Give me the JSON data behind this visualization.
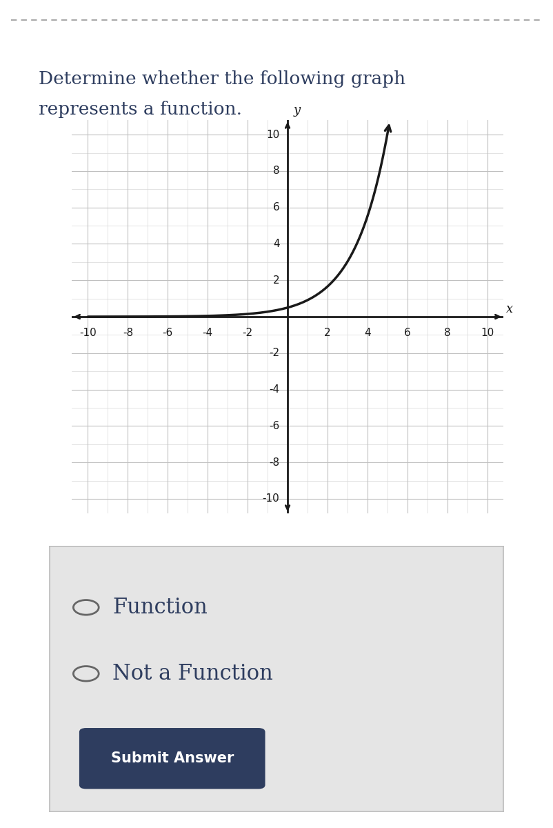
{
  "title_line1": "Determine whether the following graph",
  "title_line2": "represents a function.",
  "title_color": "#2e3d5f",
  "title_fontsize": 19,
  "bg_color": "#ffffff",
  "grid_minor_color": "#d8d8d8",
  "grid_major_color": "#c0c0c0",
  "axis_color": "#1a1a1a",
  "curve_color": "#1a1a1a",
  "xlim": [
    -10,
    10
  ],
  "ylim": [
    -10,
    10
  ],
  "xticks": [
    -10,
    -8,
    -6,
    -4,
    -2,
    2,
    4,
    6,
    8,
    10
  ],
  "yticks": [
    -10,
    -8,
    -6,
    -4,
    -2,
    2,
    4,
    6,
    8,
    10
  ],
  "tick_fontsize": 11,
  "axis_label_fontsize": 13,
  "answer_box_bg": "#e5e5e5",
  "answer_box_border": "#cccccc",
  "radio_color": "#555555",
  "option1": "Function",
  "option2": "Not a Function",
  "button_text": "Submit Answer",
  "button_bg": "#2e3d5f",
  "button_text_color": "#ffffff",
  "option_fontsize": 22,
  "button_fontsize": 15,
  "dashed_line_color": "#aaaaaa",
  "graph_bg": "#faf7f2"
}
